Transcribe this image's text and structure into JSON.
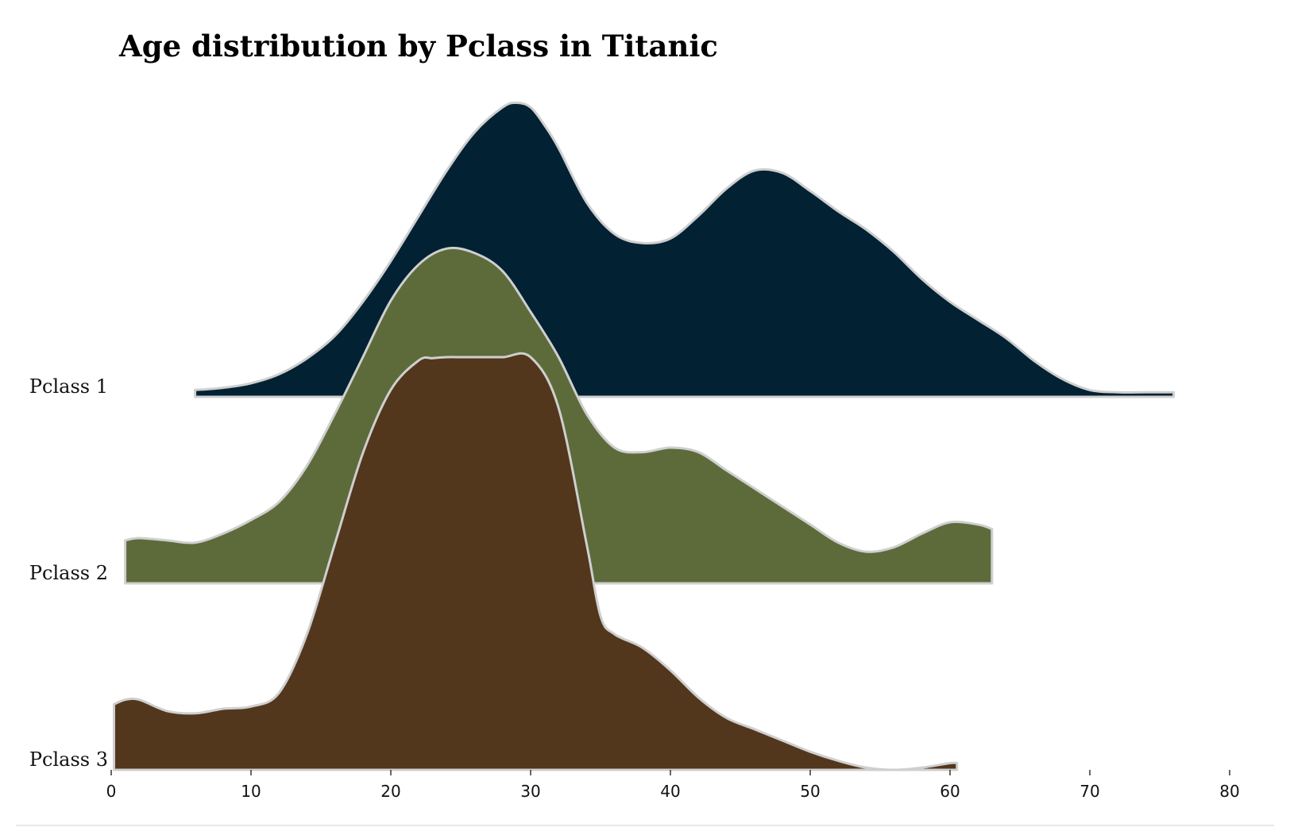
{
  "chart_data": {
    "type": "area",
    "title": "Age distribution by Pclass in Titanic",
    "xlabel": "",
    "ylabel": "",
    "xlim": [
      0,
      80
    ],
    "x_ticks": [
      "0",
      "10",
      "20",
      "30",
      "40",
      "50",
      "60",
      "70",
      "80"
    ],
    "grid": false,
    "legend": "none",
    "series": [
      {
        "name": "Pclass 1",
        "color": "#022133",
        "x": [
          6,
          8,
          10,
          12,
          14,
          16,
          18,
          20,
          22,
          24,
          26,
          28,
          29,
          30,
          31,
          32,
          34,
          36,
          38,
          40,
          42,
          44,
          46,
          48,
          50,
          52,
          54,
          56,
          58,
          60,
          62,
          64,
          66,
          68,
          70,
          72,
          74,
          76
        ],
        "density": [
          0.003,
          0.004,
          0.006,
          0.01,
          0.017,
          0.027,
          0.042,
          0.06,
          0.08,
          0.1,
          0.117,
          0.128,
          0.13,
          0.128,
          0.12,
          0.11,
          0.086,
          0.072,
          0.068,
          0.07,
          0.08,
          0.092,
          0.1,
          0.099,
          0.091,
          0.082,
          0.074,
          0.064,
          0.052,
          0.042,
          0.034,
          0.026,
          0.016,
          0.008,
          0.003,
          0.002,
          0.002,
          0.002
        ]
      },
      {
        "name": "Pclass 2",
        "color": "#5d6b3b",
        "x": [
          1,
          2,
          4,
          6,
          8,
          10,
          12,
          14,
          16,
          18,
          20,
          22,
          24,
          26,
          28,
          30,
          32,
          34,
          36,
          38,
          40,
          42,
          44,
          46,
          48,
          50,
          52,
          54,
          56,
          58,
          60,
          62,
          63
        ],
        "density": [
          0.019,
          0.02,
          0.019,
          0.018,
          0.022,
          0.028,
          0.036,
          0.052,
          0.075,
          0.1,
          0.125,
          0.141,
          0.148,
          0.146,
          0.138,
          0.12,
          0.1,
          0.075,
          0.06,
          0.058,
          0.06,
          0.058,
          0.05,
          0.042,
          0.034,
          0.026,
          0.018,
          0.014,
          0.016,
          0.022,
          0.027,
          0.026,
          0.024
        ]
      },
      {
        "name": "Pclass 3",
        "color": "#52371d",
        "x": [
          0.2,
          1,
          2,
          4,
          6,
          8,
          10,
          12,
          14,
          16,
          18,
          20,
          22,
          23,
          24,
          25,
          26,
          28,
          30,
          32,
          34,
          35,
          36,
          38,
          40,
          42,
          44,
          46,
          48,
          50,
          52,
          54,
          56,
          58,
          60,
          60.5
        ],
        "density": [
          0.029,
          0.031,
          0.031,
          0.026,
          0.025,
          0.027,
          0.028,
          0.034,
          0.06,
          0.1,
          0.14,
          0.168,
          0.181,
          0.182,
          0.184,
          0.205,
          0.235,
          0.245,
          0.22,
          0.16,
          0.1,
          0.068,
          0.06,
          0.054,
          0.044,
          0.032,
          0.023,
          0.018,
          0.013,
          0.008,
          0.004,
          0.001,
          0.0,
          0.001,
          0.003,
          0.003
        ]
      }
    ]
  }
}
